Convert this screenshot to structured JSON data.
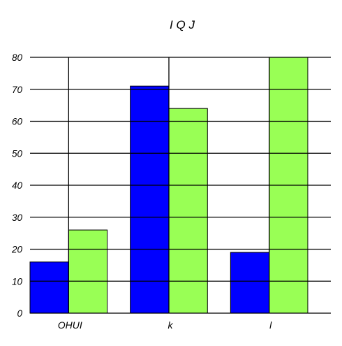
{
  "chart_data": {
    "type": "bar",
    "title": "I Q J",
    "xlabel": "",
    "ylabel": "",
    "categories": [
      "OHUI",
      "k",
      "l"
    ],
    "series": [
      {
        "values": [
          16,
          71,
          19
        ],
        "color": "#0000ff"
      },
      {
        "values": [
          26,
          64,
          80
        ],
        "color": "#99ff55"
      }
    ],
    "ylim": [
      0,
      80
    ],
    "yticks": [
      "0",
      "10",
      "20",
      "30",
      "40",
      "50",
      "60",
      "70",
      "80"
    ],
    "grid": true,
    "legend": "none"
  }
}
